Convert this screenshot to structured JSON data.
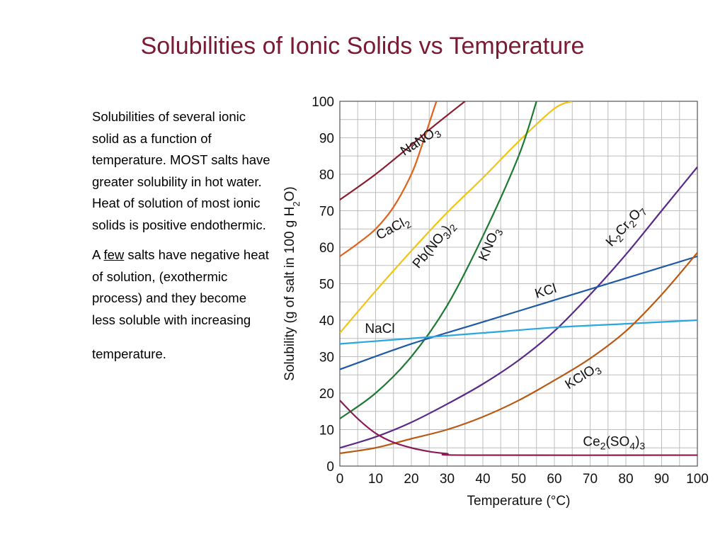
{
  "slide": {
    "title": "Solubilities of Ionic Solids vs Temperature",
    "paragraph1": "Solubilities of several ionic solid as a function of temperature. MOST salts have greater solubility in hot water. Heat of solution of most ionic solids is positive endothermic.",
    "paragraph2_prefix": "A ",
    "paragraph2_underlined": "few",
    "paragraph2_suffix": " salts have negative heat of solution, (exothermic process) and they become less soluble with increasing",
    "paragraph3": "temperature."
  },
  "chart_data": {
    "type": "line",
    "xlabel": "Temperature (°C)",
    "ylabel": "Solubility (g of salt in 100 g H2O)",
    "xlim": [
      0,
      100
    ],
    "ylim": [
      0,
      100
    ],
    "xticks": [
      0,
      10,
      20,
      30,
      40,
      50,
      60,
      70,
      80,
      90,
      100
    ],
    "yticks": [
      0,
      10,
      20,
      30,
      40,
      50,
      60,
      70,
      80,
      90,
      100
    ],
    "grid": true,
    "legend": "none (series labeled inline)",
    "series": [
      {
        "name": "NaNO3",
        "color": "#8b1a2e",
        "points": [
          [
            0,
            73
          ],
          [
            10,
            80
          ],
          [
            20,
            88
          ],
          [
            26,
            93
          ],
          [
            35,
            100
          ]
        ]
      },
      {
        "name": "CaCl2",
        "color": "#e0621a",
        "points": [
          [
            0,
            57.5
          ],
          [
            5,
            61
          ],
          [
            10,
            65
          ],
          [
            15,
            71
          ],
          [
            20,
            80
          ],
          [
            23,
            88
          ],
          [
            25,
            94
          ],
          [
            27,
            100
          ]
        ]
      },
      {
        "name": "Pb(NO3)2",
        "color": "#f2c414",
        "points": [
          [
            0,
            36.5
          ],
          [
            10,
            48
          ],
          [
            20,
            59
          ],
          [
            30,
            69.5
          ],
          [
            40,
            79
          ],
          [
            50,
            89
          ],
          [
            60,
            98
          ],
          [
            65,
            100
          ]
        ]
      },
      {
        "name": "KNO3",
        "color": "#1e7a33",
        "points": [
          [
            0,
            13
          ],
          [
            10,
            20
          ],
          [
            20,
            30
          ],
          [
            30,
            44
          ],
          [
            40,
            63
          ],
          [
            50,
            85
          ],
          [
            55,
            100
          ]
        ]
      },
      {
        "name": "K2Cr2O7",
        "color": "#5a2a8a",
        "points": [
          [
            0,
            5
          ],
          [
            10,
            8
          ],
          [
            20,
            12
          ],
          [
            30,
            17
          ],
          [
            40,
            22.5
          ],
          [
            50,
            29
          ],
          [
            60,
            37
          ],
          [
            70,
            47
          ],
          [
            80,
            58
          ],
          [
            90,
            70
          ],
          [
            100,
            82
          ]
        ]
      },
      {
        "name": "KCl",
        "color": "#1f5aa6",
        "points": [
          [
            0,
            26.5
          ],
          [
            20,
            33.5
          ],
          [
            40,
            39.5
          ],
          [
            60,
            45.5
          ],
          [
            80,
            51.5
          ],
          [
            100,
            57.5
          ]
        ]
      },
      {
        "name": "NaCl",
        "color": "#2aa6e0",
        "points": [
          [
            0,
            33.5
          ],
          [
            20,
            35
          ],
          [
            40,
            36.5
          ],
          [
            60,
            38
          ],
          [
            80,
            39
          ],
          [
            100,
            40
          ]
        ]
      },
      {
        "name": "KClO3",
        "color": "#b85a14",
        "points": [
          [
            0,
            3.5
          ],
          [
            10,
            5
          ],
          [
            20,
            7.5
          ],
          [
            30,
            10
          ],
          [
            40,
            13.5
          ],
          [
            50,
            18
          ],
          [
            60,
            23.5
          ],
          [
            70,
            29.5
          ],
          [
            80,
            37
          ],
          [
            90,
            47
          ],
          [
            100,
            58.5
          ]
        ]
      },
      {
        "name": "Ce2(SO4)3",
        "color": "#8b1a55",
        "points": [
          [
            0,
            18
          ],
          [
            5,
            13
          ],
          [
            10,
            9
          ],
          [
            15,
            6.5
          ],
          [
            20,
            5
          ],
          [
            25,
            4
          ],
          [
            30,
            3.4
          ],
          [
            35,
            3
          ],
          [
            100,
            3
          ]
        ]
      }
    ],
    "labels": [
      {
        "series": "NaNO3",
        "text": "NaNO",
        "sub": "3",
        "x": 18,
        "y": 85,
        "angle": -33
      },
      {
        "series": "CaCl2",
        "text": "CaCl",
        "sub": "2",
        "x": 11,
        "y": 62,
        "angle": -28
      },
      {
        "series": "Pb(NO3)2",
        "text": "Pb(NO",
        "sub": "3",
        "after": ")",
        "sub2": "2",
        "x": 22,
        "y": 54,
        "angle": -50
      },
      {
        "series": "KNO3",
        "text": "KNO",
        "sub": "3",
        "x": 41,
        "y": 56,
        "angle": -67
      },
      {
        "series": "K2Cr2O7",
        "text": "K",
        "sub": "2",
        "after": "Cr",
        "sub2": "2",
        "after2": "O",
        "sub3": "7",
        "x": 76,
        "y": 60,
        "angle": -48
      },
      {
        "series": "KCl",
        "text": "KCl",
        "x": 55,
        "y": 46,
        "angle": -17
      },
      {
        "series": "NaCl",
        "text": "NaCl",
        "x": 7,
        "y": 36.5,
        "angle": 0
      },
      {
        "series": "KClO3",
        "text": "KClO",
        "sub": "3",
        "x": 64,
        "y": 21,
        "angle": -32
      },
      {
        "series": "Ce2(SO4)3",
        "text": "Ce",
        "sub": "2",
        "after": "(SO",
        "sub2": "4",
        "after2": ")",
        "sub3": "3",
        "x": 68,
        "y": 5.5,
        "angle": 0
      }
    ]
  }
}
